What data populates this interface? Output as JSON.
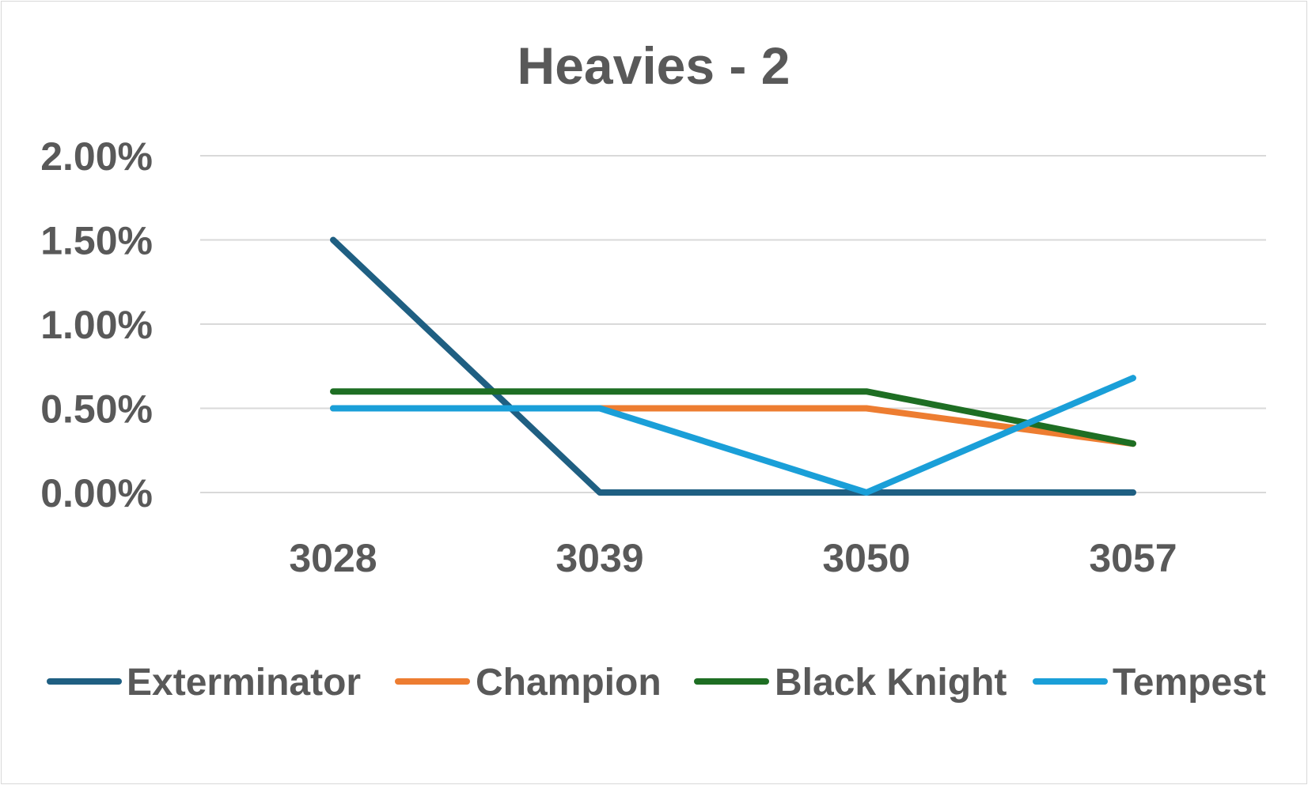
{
  "chart_data": {
    "type": "line",
    "title": "Heavies - 2",
    "xlabel": "",
    "ylabel": "",
    "categories": [
      "3028",
      "3039",
      "3050",
      "3057"
    ],
    "ylim": [
      0,
      0.02
    ],
    "yticks": [
      {
        "value": 0.0,
        "label": "0.00%"
      },
      {
        "value": 0.005,
        "label": "0.50%"
      },
      {
        "value": 0.01,
        "label": "1.00%"
      },
      {
        "value": 0.015,
        "label": "1.50%"
      },
      {
        "value": 0.02,
        "label": "2.00%"
      }
    ],
    "grid": true,
    "legend_position": "bottom",
    "series": [
      {
        "name": "Exterminator",
        "color": "#1f5f82",
        "values": [
          0.015,
          0.0,
          0.0,
          0.0
        ]
      },
      {
        "name": "Champion",
        "color": "#ed7d31",
        "values": [
          0.005,
          0.005,
          0.005,
          0.0029
        ]
      },
      {
        "name": "Black Knight",
        "color": "#1e6e23",
        "values": [
          0.006,
          0.006,
          0.006,
          0.0029
        ]
      },
      {
        "name": "Tempest",
        "color": "#1a9fd8",
        "values": [
          0.005,
          0.005,
          0.0,
          0.0068
        ]
      }
    ]
  }
}
